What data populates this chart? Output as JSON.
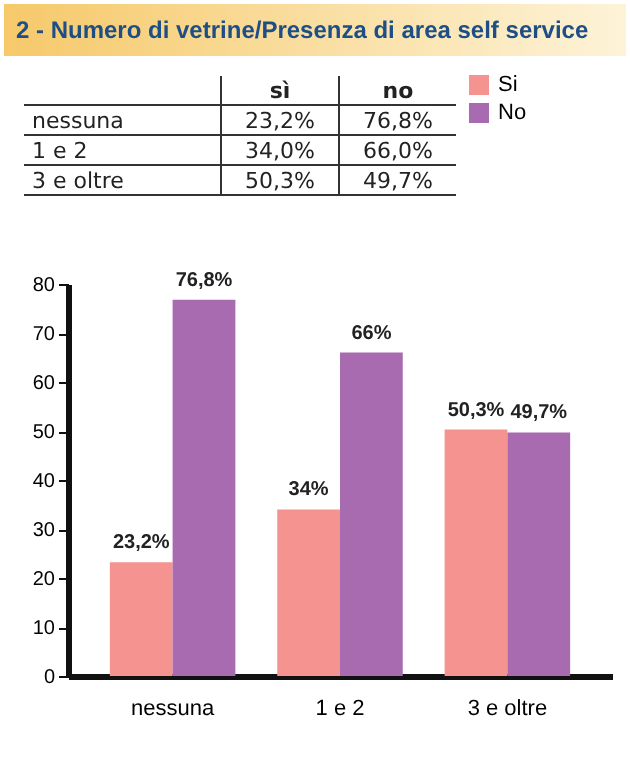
{
  "chart_data": {
    "type": "bar",
    "title": "2 - Numero di vetrine/Presenza di area self service",
    "categories": [
      "nessuna",
      "1 e 2",
      "3 e oltre"
    ],
    "series": [
      {
        "name": "Si",
        "color": "#f4938f",
        "values": [
          23.2,
          34.0,
          50.3
        ],
        "value_labels": [
          "23,2%",
          "34%",
          "50,3%"
        ]
      },
      {
        "name": "No",
        "color": "#a86bb0",
        "values": [
          76.8,
          66.0,
          49.7
        ],
        "value_labels": [
          "76,8%",
          "66%",
          "49,7%"
        ]
      }
    ],
    "annotations": [
      "sì",
      "no",
      "23,2%",
      "76,8%",
      "34,0%",
      "66,0%",
      "50,3%",
      "49,7%"
    ],
    "ylim": [
      0,
      80
    ],
    "yticks": [
      0,
      10,
      20,
      30,
      40,
      50,
      60,
      70,
      80
    ],
    "grid": false,
    "legend": "top right"
  }
}
